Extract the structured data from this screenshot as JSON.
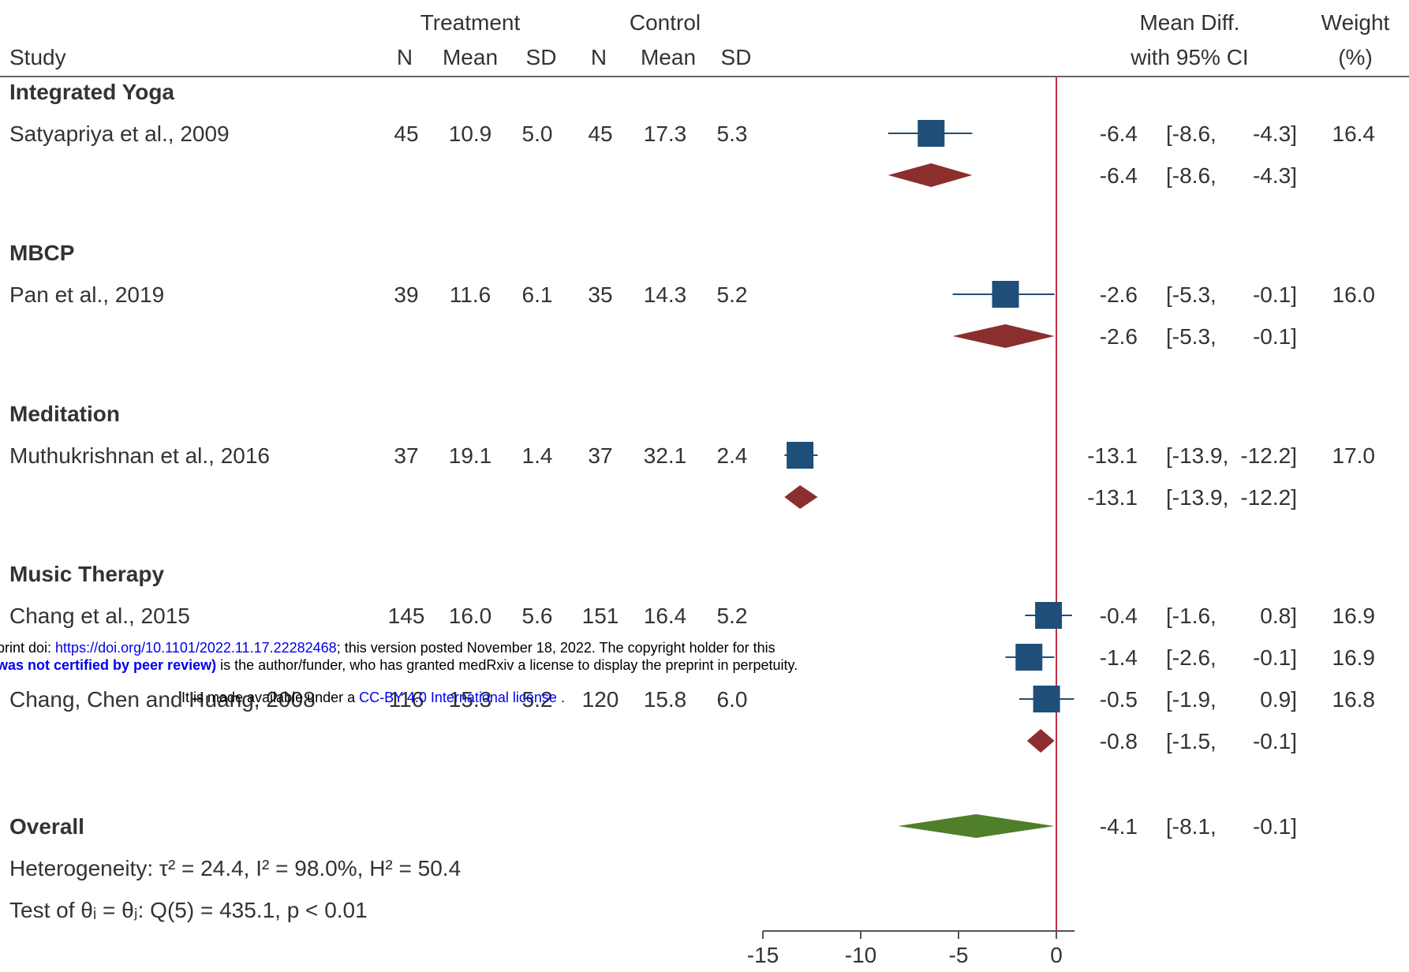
{
  "colors": {
    "text": "#333333",
    "study_marker": "#1f4e79",
    "ci_line": "#1f4e79",
    "subgroup_diamond": "#8b2e2e",
    "overall_diamond": "#4f7f2a",
    "null_line": "#c0304a",
    "axis": "#555555",
    "link": "#0000ee"
  },
  "header": {
    "study": "Study",
    "treatment": "Treatment",
    "control": "Control",
    "n": "N",
    "mean": "Mean",
    "sd": "SD",
    "mean_diff_line1": "Mean Diff.",
    "mean_diff_line2": "with 95% CI",
    "weight_line1": "Weight",
    "weight_line2": "(%)"
  },
  "overall": {
    "label": "Overall",
    "md": "-4.1",
    "ci_low": "[-8.1,",
    "ci_high": "-0.1]",
    "heterogeneity": "Heterogeneity: τ² = 24.4, I² = 98.0%, H² = 50.4",
    "test": "Test of θᵢ = θⱼ: Q(5) = 435.1, p < 0.01"
  },
  "stamp": {
    "line1_prefix": "print doi: ",
    "line1_link": "https://doi.org/10.1101/2022.11.17.22282468",
    "line1_suffix": "; this version posted November 18, 2022. The copyright holder for this",
    "line2_bold": "was not certified by peer review)",
    "line2_rest": " is the author/funder, who has granted medRxiv a license to display the preprint in perpetuity.",
    "line3_prefix": "It is made available under a ",
    "line3_link": "CC-BY 4.0 International license",
    "line3_suffix": " ."
  },
  "chart_data": {
    "type": "forest",
    "xlim": [
      -15,
      0
    ],
    "x_ticks": [
      "-15",
      "-10",
      "-5",
      "0"
    ],
    "x_tick_values": [
      -15,
      -10,
      -5,
      0
    ],
    "groups": [
      {
        "name": "Integrated Yoga",
        "studies": [
          {
            "study": "Satyapriya et al., 2009",
            "t_n": "45",
            "t_mean": "10.9",
            "t_sd": "5.0",
            "c_n": "45",
            "c_mean": "17.3",
            "c_sd": "5.3",
            "md": -6.4,
            "lo": -8.6,
            "hi": -4.3,
            "md_txt": "-6.4",
            "lo_txt": "[-8.6,",
            "hi_txt": "-4.3]",
            "weight": "16.4"
          }
        ],
        "pooled": {
          "md": -6.4,
          "lo": -8.6,
          "hi": -4.3,
          "md_txt": "-6.4",
          "lo_txt": "[-8.6,",
          "hi_txt": "-4.3]"
        }
      },
      {
        "name": "MBCP",
        "studies": [
          {
            "study": "Pan et al., 2019",
            "t_n": "39",
            "t_mean": "11.6",
            "t_sd": "6.1",
            "c_n": "35",
            "c_mean": "14.3",
            "c_sd": "5.2",
            "md": -2.6,
            "lo": -5.3,
            "hi": -0.1,
            "md_txt": "-2.6",
            "lo_txt": "[-5.3,",
            "hi_txt": "-0.1]",
            "weight": "16.0"
          }
        ],
        "pooled": {
          "md": -2.6,
          "lo": -5.3,
          "hi": -0.1,
          "md_txt": "-2.6",
          "lo_txt": "[-5.3,",
          "hi_txt": "-0.1]"
        }
      },
      {
        "name": "Meditation",
        "studies": [
          {
            "study": "Muthukrishnan et al., 2016",
            "t_n": "37",
            "t_mean": "19.1",
            "t_sd": "1.4",
            "c_n": "37",
            "c_mean": "32.1",
            "c_sd": "2.4",
            "md": -13.1,
            "lo": -13.9,
            "hi": -12.2,
            "md_txt": "-13.1",
            "lo_txt": "[-13.9,",
            "hi_txt": "-12.2]",
            "weight": "17.0"
          }
        ],
        "pooled": {
          "md": -13.1,
          "lo": -13.9,
          "hi": -12.2,
          "md_txt": "-13.1",
          "lo_txt": "[-13.9,",
          "hi_txt": "-12.2]"
        }
      },
      {
        "name": "Music Therapy",
        "studies": [
          {
            "study": "Chang et al., 2015",
            "t_n": "145",
            "t_mean": "16.0",
            "t_sd": "5.6",
            "c_n": "151",
            "c_mean": "16.4",
            "c_sd": "5.2",
            "md": -0.4,
            "lo": -1.6,
            "hi": 0.8,
            "md_txt": "-0.4",
            "lo_txt": "[-1.6,",
            "hi_txt": "0.8]",
            "weight": "16.9"
          },
          {
            "study": "",
            "t_n": "",
            "t_mean": "",
            "t_sd": "",
            "c_n": "",
            "c_mean": "",
            "c_sd": "",
            "md": -1.4,
            "lo": -2.6,
            "hi": -0.1,
            "md_txt": "-1.4",
            "lo_txt": "[-2.6,",
            "hi_txt": "-0.1]",
            "weight": "16.9"
          },
          {
            "study": "Chang, Chen and Huang, 2008",
            "t_n": "116",
            "t_mean": "15.3",
            "t_sd": "5.2",
            "c_n": "120",
            "c_mean": "15.8",
            "c_sd": "6.0",
            "md": -0.5,
            "lo": -1.9,
            "hi": 0.9,
            "md_txt": "-0.5",
            "lo_txt": "[-1.9,",
            "hi_txt": "0.9]",
            "weight": "16.8"
          }
        ],
        "pooled": {
          "md": -0.8,
          "lo": -1.5,
          "hi": -0.1,
          "md_txt": "-0.8",
          "lo_txt": "[-1.5,",
          "hi_txt": "-0.1]"
        }
      }
    ],
    "overall": {
      "md": -4.1,
      "lo": -8.1,
      "hi": -0.1
    }
  }
}
